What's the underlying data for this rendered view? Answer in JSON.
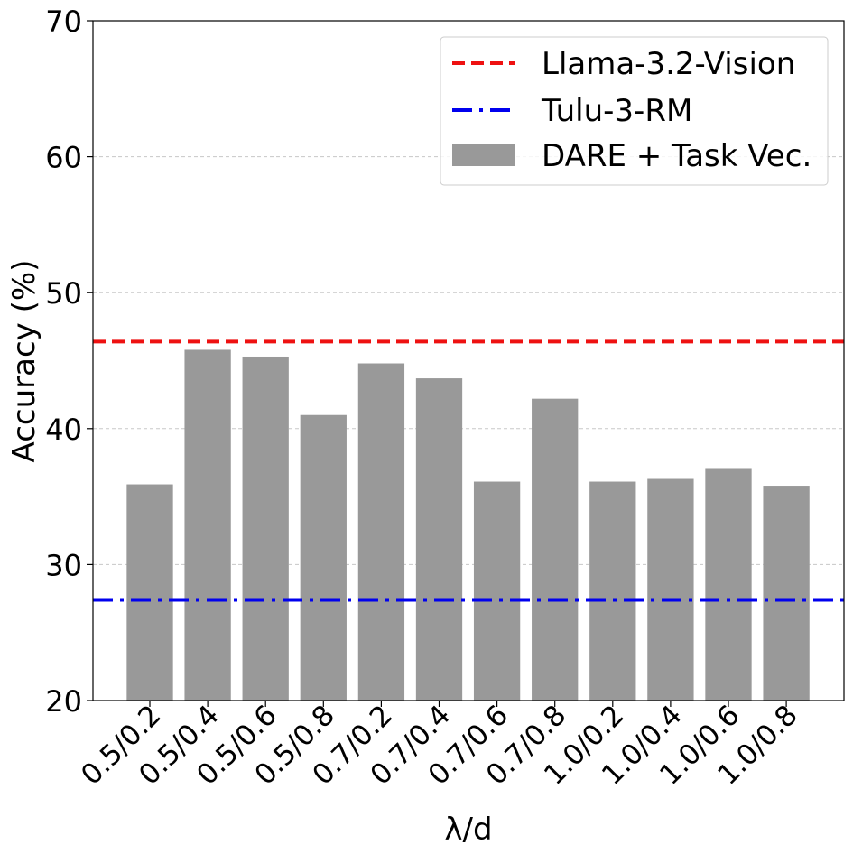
{
  "chart_data": {
    "type": "bar",
    "title": "",
    "xlabel": "λ/d",
    "ylabel": "Accuracy (%)",
    "ylim": [
      20,
      70
    ],
    "yticks": [
      20,
      30,
      40,
      50,
      60,
      70
    ],
    "grid": true,
    "legend_position": "top-right",
    "categories": [
      "0.5/0.2",
      "0.5/0.4",
      "0.5/0.6",
      "0.5/0.8",
      "0.7/0.2",
      "0.7/0.4",
      "0.7/0.6",
      "0.7/0.8",
      "1.0/0.2",
      "1.0/0.4",
      "1.0/0.6",
      "1.0/0.8"
    ],
    "series": [
      {
        "name": "DARE + Task Vec.",
        "color": "#999999",
        "values": [
          35.9,
          45.8,
          45.3,
          41.0,
          44.8,
          43.7,
          36.1,
          42.2,
          36.1,
          36.3,
          37.1,
          35.8
        ]
      }
    ],
    "reference_lines": [
      {
        "name": "Llama-3.2-Vision",
        "value": 46.4,
        "color": "#ee1111",
        "style": "dashed"
      },
      {
        "name": "Tulu-3-RM",
        "value": 27.4,
        "color": "#0000ee",
        "style": "dashdot"
      }
    ],
    "legend": [
      {
        "label": "Llama-3.2-Vision",
        "kind": "dashed",
        "color": "#ee1111"
      },
      {
        "label": "Tulu-3-RM",
        "kind": "dashdot",
        "color": "#0000ee"
      },
      {
        "label": "DARE + Task Vec.",
        "kind": "patch",
        "color": "#999999"
      }
    ]
  }
}
